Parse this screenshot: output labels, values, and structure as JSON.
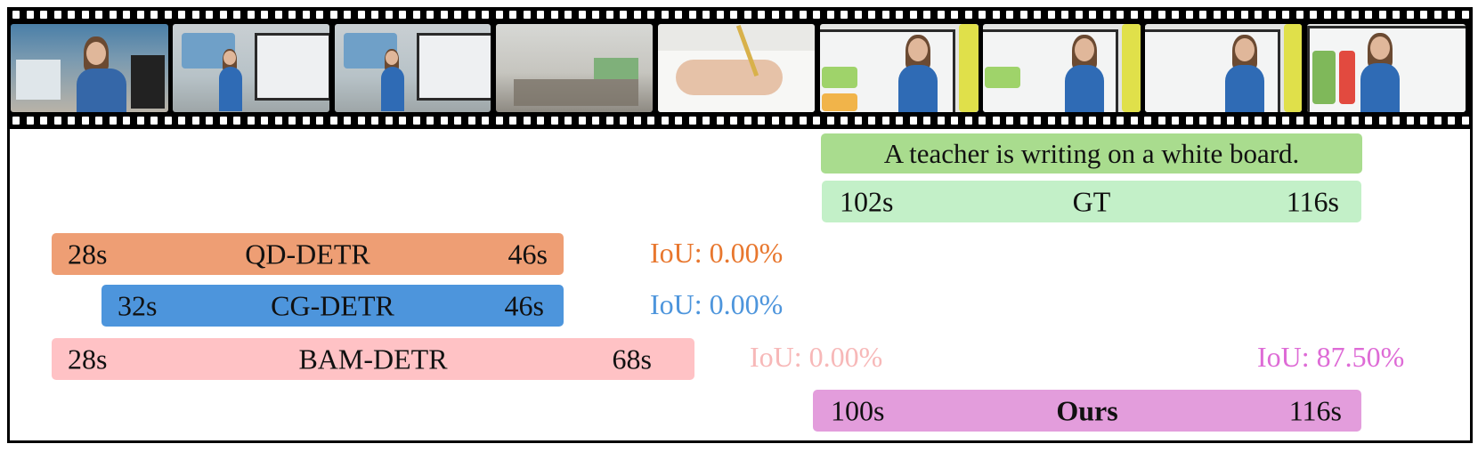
{
  "query": "A teacher is writing on a white board.",
  "gt": {
    "name": "GT",
    "start": "102s",
    "end": "116s",
    "color": "#c3f0c8"
  },
  "methods": [
    {
      "name": "QD-DETR",
      "start": "28s",
      "end": "46s",
      "iou": "IoU: 0.00%",
      "color": "#ee9e74",
      "iou_color": "#e8772e"
    },
    {
      "name": "CG-DETR",
      "start": "32s",
      "end": "46s",
      "iou": "IoU: 0.00%",
      "color": "#4d95dc",
      "iou_color": "#4d95dc"
    },
    {
      "name": "BAM-DETR",
      "start": "28s",
      "end": "68s",
      "iou": "IoU: 0.00%",
      "color": "#ffc2c5",
      "iou_color": "#f7b8b8"
    },
    {
      "name": "Ours",
      "start": "100s",
      "end": "116s",
      "iou": "IoU: 87.50%",
      "color": "#e39ddc",
      "iou_color": "#de6bd6"
    }
  ],
  "frames": [
    "teacher-at-desk",
    "teacher-at-board",
    "teacher-at-board",
    "classroom-wide",
    "hand-writing",
    "teacher-writing-board",
    "teacher-writing-board",
    "teacher-writing-board",
    "teacher-presenting-board"
  ]
}
